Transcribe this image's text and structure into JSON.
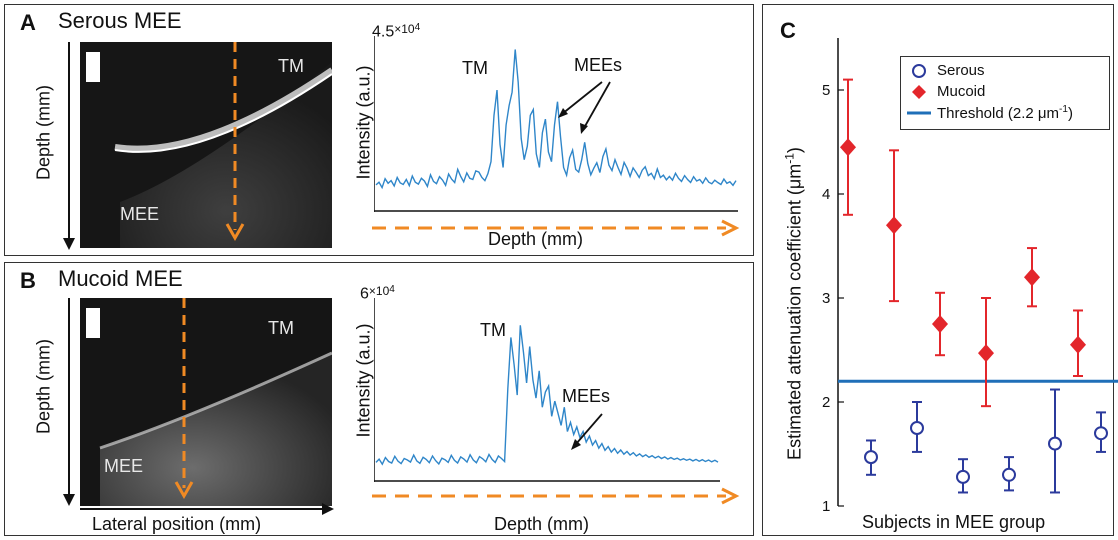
{
  "panel_a": {
    "letter": "A",
    "title": "Serous MEE",
    "image_labels": {
      "tm": "TM",
      "mee": "MEE"
    },
    "ylabel": "Depth (mm)",
    "profile": {
      "scale": "4.5",
      "scale_exp": "×10",
      "scale_pow": "4",
      "ylabel": "Intensity (a.u.)",
      "xlabel": "Depth (mm)",
      "annotations": {
        "tm": "TM",
        "mees": "MEEs"
      }
    }
  },
  "panel_b": {
    "letter": "B",
    "title": "Mucoid MEE",
    "image_labels": {
      "tm": "TM",
      "mee": "MEE"
    },
    "ylabel": "Depth (mm)",
    "xlabel": "Lateral position (mm)",
    "profile": {
      "scale": "6",
      "scale_exp": "×10",
      "scale_pow": "4",
      "ylabel": "Intensity (a.u.)",
      "xlabel": "Depth (mm)",
      "annotations": {
        "tm": "TM",
        "mees": "MEEs"
      }
    }
  },
  "panel_c": {
    "letter": "C",
    "legend": {
      "serous": "Serous",
      "mucoid": "Mucoid",
      "threshold_prefix": "Threshold (2.2 μm",
      "threshold_sup": "-1",
      "threshold_suffix": ")"
    },
    "ylabel_prefix": "Estimated attenuation coefficient (μm",
    "ylabel_sup": "-1",
    "ylabel_suffix": ")",
    "xlabel": "Subjects in MEE group"
  },
  "colors": {
    "serous": "#2b3a9c",
    "mucoid": "#e3262b",
    "threshold": "#1f6fb8",
    "trace": "#2f86c9",
    "arrow_dashed": "#f08a24"
  },
  "chart_data": [
    {
      "type": "line",
      "panel": "A",
      "x_unit": "Depth (mm)",
      "ylabel": "Intensity (a.u.)",
      "ylim": [
        0,
        45000
      ],
      "y": [
        6500,
        7200,
        5800,
        8100,
        6900,
        7600,
        6200,
        8400,
        7000,
        6600,
        7900,
        6300,
        8800,
        7200,
        6700,
        8200,
        7500,
        6100,
        9100,
        7400,
        6800,
        8600,
        7700,
        6400,
        9300,
        8000,
        7100,
        10500,
        8700,
        7300,
        9600,
        8200,
        7900,
        10100,
        9800,
        8400,
        7600,
        9400,
        12500,
        24500,
        31000,
        17000,
        11000,
        22000,
        27000,
        30500,
        41500,
        33000,
        18500,
        13000,
        16500,
        24500,
        26000,
        14500,
        11000,
        20000,
        23500,
        15000,
        12500,
        22000,
        28000,
        19000,
        11000,
        9000,
        13500,
        15500,
        10500,
        9800,
        13000,
        17500,
        12000,
        9100,
        10800,
        12200,
        9700,
        13800,
        15800,
        11600,
        10200,
        13000,
        11000,
        9200,
        12300,
        10800,
        8700,
        10900,
        9700,
        8400,
        10300,
        11200,
        8900,
        9500,
        8100,
        10600,
        8400,
        9000,
        7800,
        8700,
        7700,
        9500,
        8200,
        7400,
        8900,
        7900,
        7100,
        8600,
        7500,
        7900,
        6900,
        8300,
        7200,
        6800,
        7700,
        7100,
        6600,
        8000,
        6900,
        7300,
        6400,
        7600
      ],
      "annotations": [
        "TM",
        "MEEs"
      ]
    },
    {
      "type": "line",
      "panel": "B",
      "x_unit": "Depth (mm)",
      "ylabel": "Intensity (a.u.)",
      "ylim": [
        0,
        60000
      ],
      "y": [
        5800,
        6900,
        5200,
        7400,
        6100,
        5600,
        7800,
        6200,
        5400,
        7100,
        6600,
        5900,
        8200,
        6300,
        5500,
        7500,
        6800,
        5700,
        7900,
        6400,
        5300,
        7200,
        6700,
        5800,
        8100,
        6500,
        5600,
        7600,
        6900,
        5900,
        8300,
        6600,
        5700,
        7700,
        7000,
        6000,
        8400,
        6800,
        5800,
        7900,
        7100,
        6100,
        30000,
        47000,
        38000,
        28000,
        51000,
        42000,
        32000,
        44000,
        33000,
        27000,
        36000,
        24000,
        29000,
        31000,
        21000,
        26000,
        22000,
        18000,
        24000,
        16000,
        19000,
        15000,
        17500,
        14000,
        16000,
        12500,
        14500,
        11500,
        13000,
        10500,
        12000,
        9800,
        11000,
        9200,
        10400,
        8800,
        9900,
        8500,
        9400,
        8200,
        9000,
        7900,
        8600,
        7700,
        8300,
        7500,
        8000,
        7300,
        7800,
        7100,
        7600,
        6900,
        7400,
        6800,
        7200,
        6600,
        7000,
        6500,
        6900,
        6300,
        6800,
        6200,
        6700,
        6100,
        6600,
        6000,
        6500,
        5900
      ],
      "annotations": [
        "TM",
        "MEEs"
      ]
    },
    {
      "type": "scatter",
      "panel": "C",
      "xlabel": "Subjects in MEE group",
      "ylabel": "Estimated attenuation coefficient (μm-1)",
      "ylim": [
        1,
        5.5
      ],
      "yticks": [
        1,
        2,
        3,
        4,
        5
      ],
      "xlim": [
        0.5,
        10.8
      ],
      "legend": "top-right",
      "threshold": 2.2,
      "series": [
        {
          "name": "Serous",
          "marker": "open-circle",
          "points": [
            {
              "x": 1,
              "y": 1.47,
              "lo": 1.3,
              "hi": 1.63
            },
            {
              "x": 2,
              "y": 1.75,
              "lo": 1.52,
              "hi": 2.0
            },
            {
              "x": 3,
              "y": 1.28,
              "lo": 1.13,
              "hi": 1.45
            },
            {
              "x": 4,
              "y": 1.3,
              "lo": 1.15,
              "hi": 1.47
            },
            {
              "x": 5,
              "y": 1.6,
              "lo": 1.13,
              "hi": 2.12
            },
            {
              "x": 6,
              "y": 1.7,
              "lo": 1.52,
              "hi": 1.9
            }
          ]
        },
        {
          "name": "Mucoid",
          "marker": "filled-diamond",
          "points": [
            {
              "x": 1,
              "y": 4.45,
              "lo": 3.8,
              "hi": 5.1
            },
            {
              "x": 2,
              "y": 3.7,
              "lo": 2.97,
              "hi": 4.42
            },
            {
              "x": 3,
              "y": 2.75,
              "lo": 2.45,
              "hi": 3.05
            },
            {
              "x": 4,
              "y": 2.47,
              "lo": 1.96,
              "hi": 3.0
            },
            {
              "x": 5,
              "y": 3.2,
              "lo": 2.92,
              "hi": 3.48
            },
            {
              "x": 6,
              "y": 2.55,
              "lo": 2.25,
              "hi": 2.88
            }
          ]
        }
      ]
    }
  ]
}
